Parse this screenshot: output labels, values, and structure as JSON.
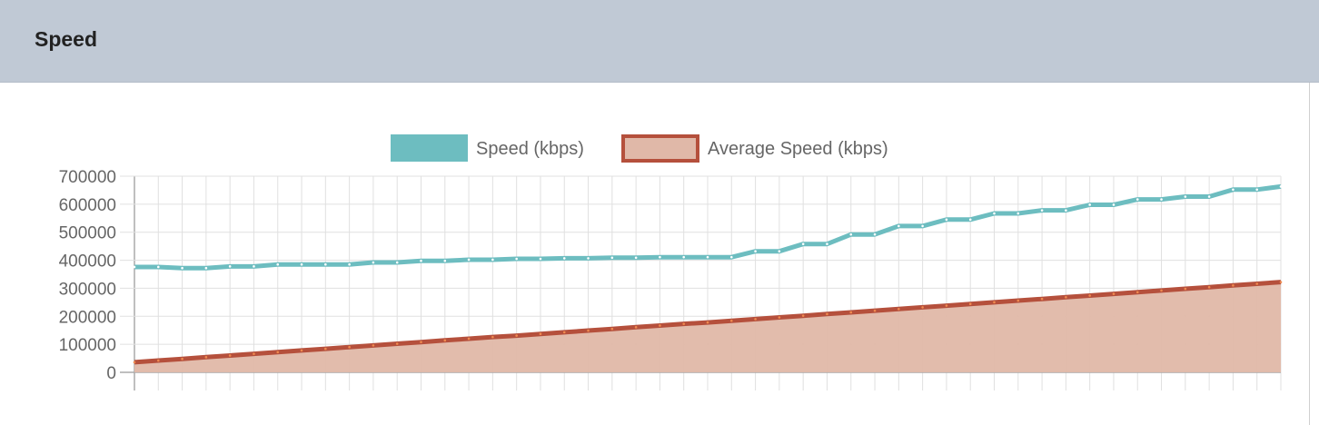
{
  "header": {
    "title": "Speed"
  },
  "chart_data": {
    "type": "line",
    "title": "",
    "xlabel": "",
    "ylabel": "",
    "ylim": [
      0,
      700000
    ],
    "yticks": [
      "700000",
      "600000",
      "500000",
      "400000",
      "300000",
      "200000",
      "100000",
      "0"
    ],
    "grid": true,
    "legend_placement": "top",
    "point_count": 49,
    "series": [
      {
        "name": "Speed (kbps)",
        "color": "#6dbdc0",
        "fill": false,
        "values": [
          376000,
          376000,
          372000,
          372000,
          378000,
          378000,
          385000,
          385000,
          385000,
          385000,
          392000,
          392000,
          398000,
          398000,
          402000,
          402000,
          405000,
          405000,
          407000,
          407000,
          409000,
          409000,
          411000,
          411000,
          411000,
          411000,
          432000,
          432000,
          458000,
          458000,
          492000,
          492000,
          522000,
          522000,
          545000,
          545000,
          567000,
          567000,
          578000,
          578000,
          598000,
          598000,
          617000,
          617000,
          627000,
          627000,
          652000,
          652000,
          663000
        ]
      },
      {
        "name": "Average Speed (kbps)",
        "color": "#b5503c",
        "fillColor": "#e0b8a8",
        "fill": true,
        "values": [
          36000,
          42000,
          48000,
          54000,
          60000,
          66000,
          72000,
          78000,
          84000,
          90000,
          96000,
          102000,
          108000,
          114000,
          120000,
          126000,
          131000,
          137000,
          143000,
          149000,
          155000,
          161000,
          167000,
          173000,
          178000,
          184000,
          190000,
          196000,
          202000,
          208000,
          214000,
          220000,
          226000,
          232000,
          238000,
          244000,
          250000,
          256000,
          262000,
          268000,
          274000,
          280000,
          286000,
          292000,
          298000,
          304000,
          310000,
          316000,
          322000
        ]
      }
    ]
  }
}
